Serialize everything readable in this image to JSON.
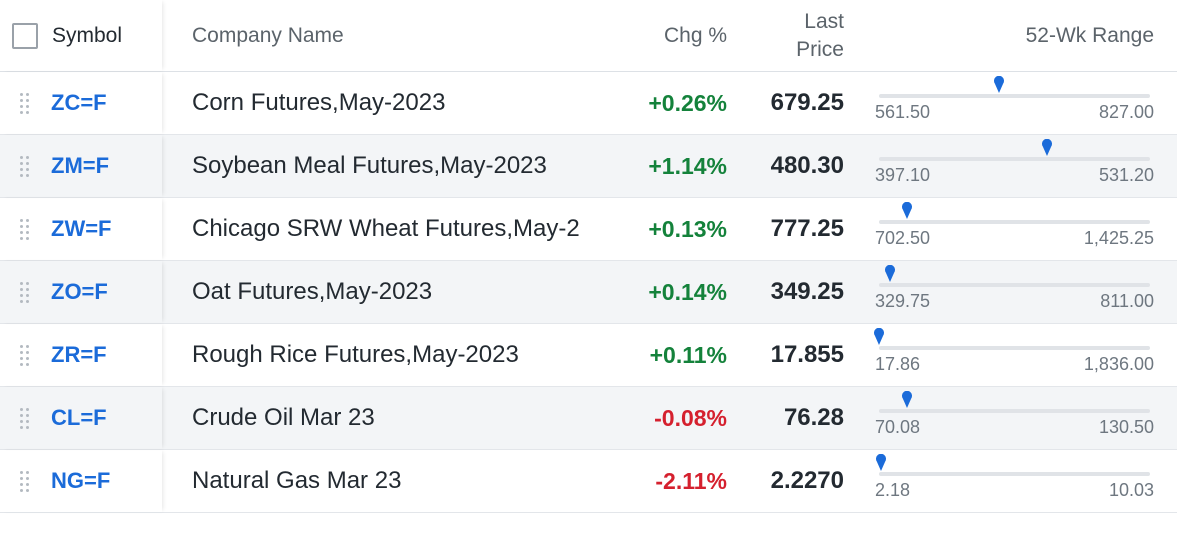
{
  "header": {
    "symbol": "Symbol",
    "company_name": "Company Name",
    "chg_pct": "Chg %",
    "last_price_line1": "Last",
    "last_price_line2": "Price",
    "range": "52-Wk Range"
  },
  "colors": {
    "link": "#1b6bd9",
    "positive": "#14823b",
    "negative": "#d5202e",
    "marker": "#1b6bd9"
  },
  "rows": [
    {
      "symbol": "ZC=F",
      "name": "Corn Futures,May-2023",
      "chg": "+0.26%",
      "direction": "pos",
      "price": "679.25",
      "low": "561.50",
      "high": "827.00",
      "low_val": 561.5,
      "high_val": 827.0,
      "price_val": 679.25
    },
    {
      "symbol": "ZM=F",
      "name": "Soybean Meal Futures,May-2023",
      "chg": "+1.14%",
      "direction": "pos",
      "price": "480.30",
      "low": "397.10",
      "high": "531.20",
      "low_val": 397.1,
      "high_val": 531.2,
      "price_val": 480.3
    },
    {
      "symbol": "ZW=F",
      "name": "Chicago SRW Wheat Futures,May-2",
      "chg": "+0.13%",
      "direction": "pos",
      "price": "777.25",
      "low": "702.50",
      "high": "1,425.25",
      "low_val": 702.5,
      "high_val": 1425.25,
      "price_val": 777.25
    },
    {
      "symbol": "ZO=F",
      "name": "Oat Futures,May-2023",
      "chg": "+0.14%",
      "direction": "pos",
      "price": "349.25",
      "low": "329.75",
      "high": "811.00",
      "low_val": 329.75,
      "high_val": 811.0,
      "price_val": 349.25
    },
    {
      "symbol": "ZR=F",
      "name": "Rough Rice Futures,May-2023",
      "chg": "+0.11%",
      "direction": "pos",
      "price": "17.855",
      "low": "17.86",
      "high": "1,836.00",
      "low_val": 17.86,
      "high_val": 1836.0,
      "price_val": 17.855
    },
    {
      "symbol": "CL=F",
      "name": "Crude Oil Mar 23",
      "chg": "-0.08%",
      "direction": "neg",
      "price": "76.28",
      "low": "70.08",
      "high": "130.50",
      "low_val": 70.08,
      "high_val": 130.5,
      "price_val": 76.28
    },
    {
      "symbol": "NG=F",
      "name": "Natural Gas Mar 23",
      "chg": "-2.11%",
      "direction": "neg",
      "price": "2.2270",
      "low": "2.18",
      "high": "10.03",
      "low_val": 2.18,
      "high_val": 10.03,
      "price_val": 2.227
    }
  ]
}
